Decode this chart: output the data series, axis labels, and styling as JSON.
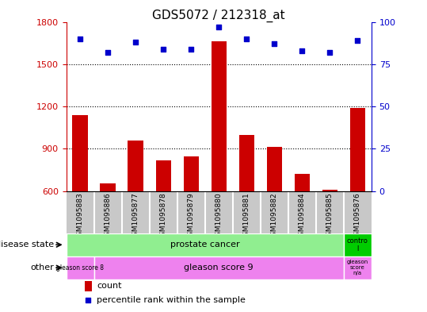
{
  "title": "GDS5072 / 212318_at",
  "samples": [
    "GSM1095883",
    "GSM1095886",
    "GSM1095877",
    "GSM1095878",
    "GSM1095879",
    "GSM1095880",
    "GSM1095881",
    "GSM1095882",
    "GSM1095884",
    "GSM1095885",
    "GSM1095876"
  ],
  "counts": [
    1140,
    655,
    960,
    820,
    845,
    1660,
    1000,
    915,
    720,
    610,
    1190
  ],
  "percentile_ranks": [
    90,
    82,
    88,
    84,
    84,
    97,
    90,
    87,
    83,
    82,
    89
  ],
  "ylim_left": [
    600,
    1800
  ],
  "ylim_right": [
    0,
    100
  ],
  "yticks_left": [
    600,
    900,
    1200,
    1500,
    1800
  ],
  "yticks_right": [
    0,
    25,
    50,
    75,
    100
  ],
  "bar_color": "#cc0000",
  "dot_color": "#0000cc",
  "background_color": "#ffffff",
  "tick_bg_color": "#c8c8c8",
  "tick_sep_color": "#ffffff",
  "disease_state_label": "disease state",
  "disease_state_labels": [
    "prostate cancer",
    "contro\nl"
  ],
  "disease_state_color": "#90ee90",
  "control_color": "#00cc00",
  "other_label": "other",
  "other_labels": [
    "gleason score 8",
    "gleason score 9",
    "gleason\nscore\nn/a"
  ],
  "other_color": "#ee82ee",
  "legend_count": "count",
  "legend_pct": "percentile rank within the sample",
  "bar_width": 0.55,
  "dotted_lines": [
    900,
    1200,
    1500
  ],
  "height_ratios": [
    2.8,
    0.7,
    0.38,
    0.38,
    0.44
  ]
}
